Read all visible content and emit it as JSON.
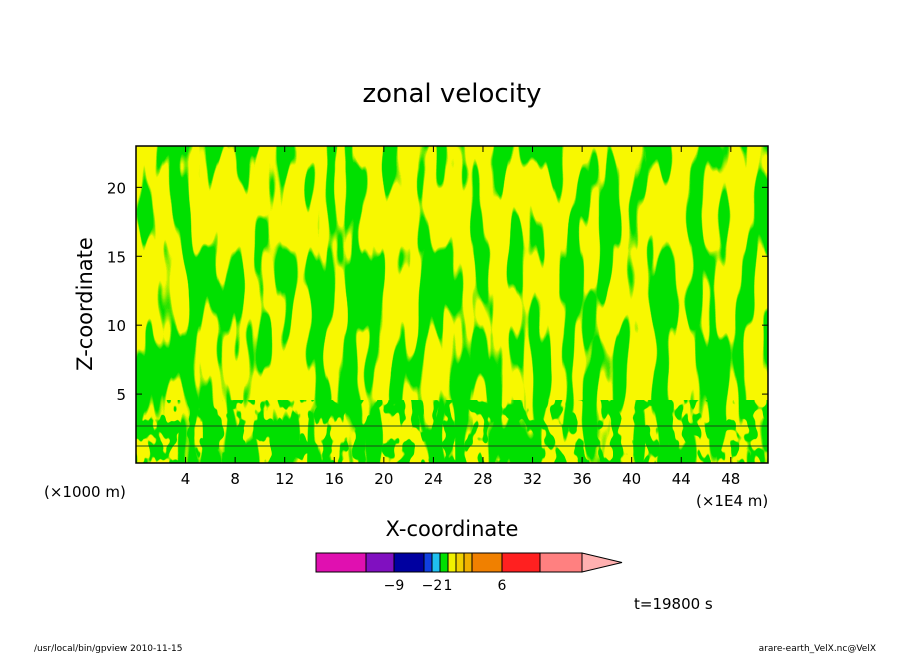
{
  "chart_data": {
    "type": "heatmap",
    "title": "zonal velocity",
    "xlabel": "X-coordinate",
    "ylabel": "Z-coordinate",
    "x_unit_note": "(×1E4 m)",
    "y_unit_note": "(×1000 m)",
    "xlim": [
      0,
      51
    ],
    "ylim": [
      0,
      23
    ],
    "x_ticks": [
      4,
      8,
      12,
      16,
      20,
      24,
      28,
      32,
      36,
      40,
      44,
      48
    ],
    "y_ticks": [
      5,
      10,
      15,
      20
    ],
    "colorbar": {
      "label_values": [
        -9,
        -2,
        1,
        6
      ],
      "tick_labels": [
        "−9",
        "−2",
        "1",
        "6"
      ],
      "colors": [
        "#e010b0",
        "#8010c0",
        "#0000a0",
        "#1040e0",
        "#20c0f0",
        "#00e000",
        "#f0f000",
        "#f0d000",
        "#f0b000",
        "#f08000",
        "#ff2020",
        "#ff8080"
      ],
      "extend_color": "#ffb0b0"
    },
    "contour_fill_colors": {
      "weak_westerly": "#f8f800",
      "weak_easterly": "#00e000"
    },
    "time_label": "t=19800 s"
  },
  "footer": {
    "left": "/usr/local/bin/gpview  2010-11-15",
    "right": "arare-earth_VelX.nc@VelX"
  }
}
